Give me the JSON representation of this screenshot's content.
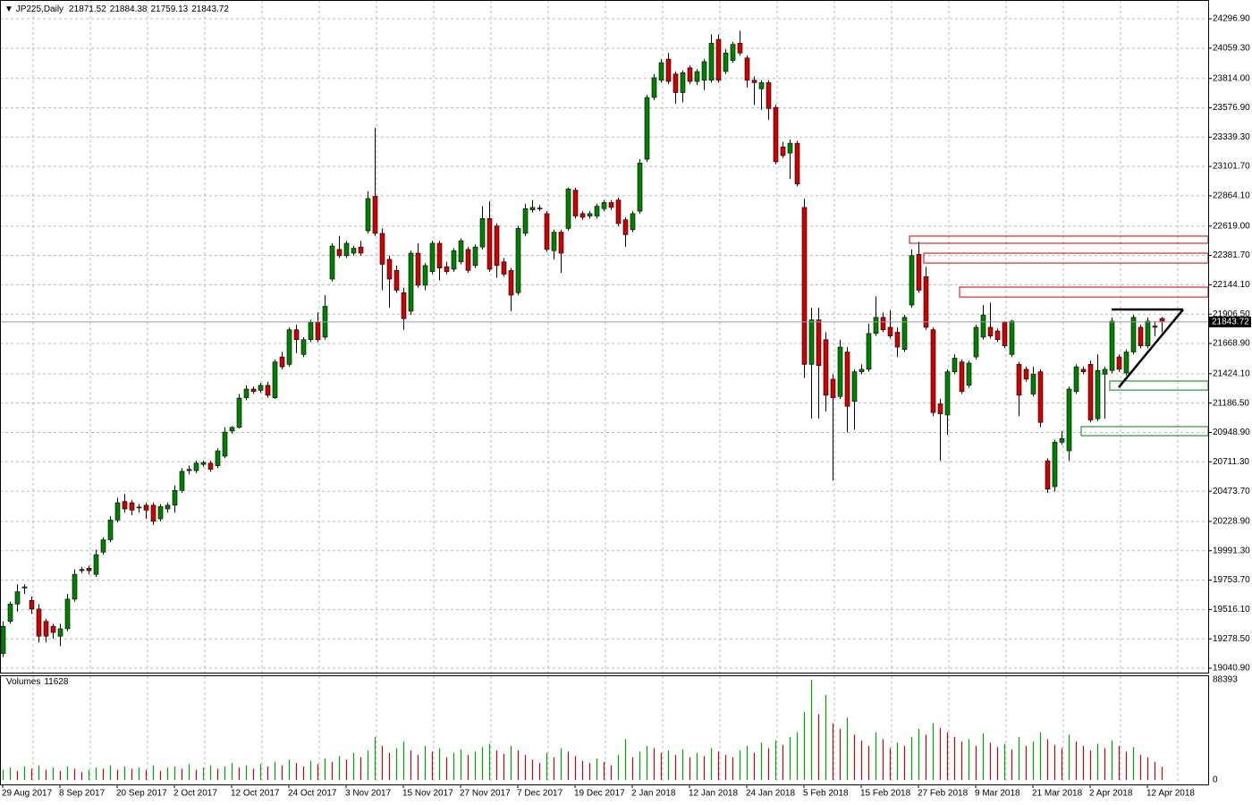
{
  "chart_data": {
    "type": "candlestick",
    "title": "JP225,Daily",
    "ylim": [
      19005,
      24449
    ],
    "yticks": [
      {
        "value": 24296.9,
        "label": "24296.90"
      },
      {
        "value": 24059.3,
        "label": "24059.30"
      },
      {
        "value": 23814,
        "label": "23814.00"
      },
      {
        "value": 23576.9,
        "label": "23576.90"
      },
      {
        "value": 23339.3,
        "label": "23339.30"
      },
      {
        "value": 23101.7,
        "label": "23101.70"
      },
      {
        "value": 22864.1,
        "label": "22864.10"
      },
      {
        "value": 22619,
        "label": "22619.00"
      },
      {
        "value": 22381.7,
        "label": "22381.70"
      },
      {
        "value": 22144.1,
        "label": "22144.10"
      },
      {
        "value": 21906.5,
        "label": "21906.50"
      },
      {
        "value": 21668.9,
        "label": "21668.90"
      },
      {
        "value": 21424.1,
        "label": "21424.10"
      },
      {
        "value": 21186.5,
        "label": "21186.50"
      },
      {
        "value": 20948.9,
        "label": "20948.90"
      },
      {
        "value": 20711.3,
        "label": "20711.30"
      },
      {
        "value": 20473.7,
        "label": "20473.70"
      },
      {
        "value": 20228.9,
        "label": "20228.90"
      },
      {
        "value": 19991.3,
        "label": "19991.30"
      },
      {
        "value": 19753.7,
        "label": "19753.70"
      },
      {
        "value": 19516.1,
        "label": "19516.10"
      },
      {
        "value": 19278.5,
        "label": "19278.50"
      },
      {
        "value": 19040.9,
        "label": "19040.90"
      }
    ],
    "xticks": [
      {
        "value": 0,
        "label": "29 Aug 2017"
      },
      {
        "value": 8,
        "label": "8 Sep 2017"
      },
      {
        "value": 16,
        "label": "20 Sep 2017"
      },
      {
        "value": 24,
        "label": "2 Oct 2017"
      },
      {
        "value": 32,
        "label": "12 Oct 2017"
      },
      {
        "value": 40,
        "label": "24 Oct 2017"
      },
      {
        "value": 48,
        "label": "3 Nov 2017"
      },
      {
        "value": 56,
        "label": "15 Nov 2017"
      },
      {
        "value": 64,
        "label": "27 Nov 2017"
      },
      {
        "value": 72,
        "label": "7 Dec 2017"
      },
      {
        "value": 80,
        "label": "19 Dec 2017"
      },
      {
        "value": 88,
        "label": "2 Jan 2018"
      },
      {
        "value": 96,
        "label": "12 Jan 2018"
      },
      {
        "value": 104,
        "label": "24 Jan 2018"
      },
      {
        "value": 112,
        "label": "5 Feb 2018"
      },
      {
        "value": 120,
        "label": "15 Feb 2018"
      },
      {
        "value": 128,
        "label": "27 Feb 2018"
      },
      {
        "value": 136,
        "label": "9 Mar 2018"
      },
      {
        "value": 144,
        "label": "21 Mar 2018"
      },
      {
        "value": 152,
        "label": "2 Apr 2018"
      },
      {
        "value": 160,
        "label": "12 Apr 2018"
      }
    ],
    "grid": true,
    "series": [
      {
        "name": "JP225",
        "up_color": "#008000",
        "down_color": "#cc0000",
        "open": [
          19160,
          19420,
          19560,
          19690,
          19590,
          19520,
          19420,
          19380,
          19300,
          19360,
          19600,
          19830,
          19850,
          19800,
          19980,
          20080,
          20240,
          20390,
          20380,
          20340,
          20360,
          20360,
          20250,
          20330,
          20360,
          20480,
          20640,
          20640,
          20690,
          20700,
          20680,
          20757,
          20960,
          20990,
          21230,
          21300,
          21290,
          21330,
          21230,
          21560,
          21500,
          21780,
          21580,
          21700,
          21840,
          21720,
          22190,
          22430,
          22380,
          22400,
          22450,
          22581,
          22860,
          22560,
          22350,
          22260,
          22080,
          21930,
          22400,
          22140,
          22250,
          22480,
          22290,
          22270,
          22330,
          22430,
          22300,
          22450,
          22680,
          22620,
          22330,
          22260,
          22080,
          22560,
          22750,
          22760,
          22720,
          22420,
          22570,
          22600,
          22910,
          22720,
          22700,
          22700,
          22760,
          22810,
          22830,
          22670,
          22590,
          22740,
          23160,
          23660,
          23800,
          23970,
          23850,
          23700,
          23900,
          23790,
          23800,
          23800,
          24130,
          23870,
          23960,
          24100,
          23980,
          23800,
          23730,
          23780,
          23580,
          23260,
          23210,
          23290,
          22770,
          21500,
          21860,
          21700,
          21380,
          21240,
          21600,
          21200,
          21440,
          21460,
          21750,
          21880,
          21800,
          21760,
          21620,
          21980,
          22390,
          22210,
          21780,
          21180,
          21090,
          21440,
          21520,
          21330,
          21560,
          21720,
          21800,
          21770,
          21840,
          21580,
          21500,
          21460,
          21260,
          21440,
          20720,
          20510,
          20870,
          20800,
          21280,
          21460,
          21500,
          21060,
          21420,
          21450,
          21560,
          21430,
          21600,
          21800,
          21650,
          21810,
          21871.52
        ],
        "high": [
          19420,
          19580,
          19720,
          19720,
          19620,
          19560,
          19440,
          19400,
          19400,
          19640,
          19840,
          19860,
          19870,
          20000,
          20100,
          20270,
          20420,
          20450,
          20400,
          20370,
          20380,
          20380,
          20370,
          20380,
          20520,
          20660,
          20680,
          20720,
          20720,
          20720,
          20820,
          20990,
          21000,
          21260,
          21330,
          21320,
          21350,
          21360,
          21540,
          21600,
          21800,
          21820,
          21720,
          21860,
          21920,
          22060,
          22480,
          22540,
          22500,
          22460,
          22500,
          22900,
          23414,
          22600,
          22380,
          22300,
          22120,
          22420,
          22480,
          22320,
          22500,
          22500,
          22330,
          22440,
          22520,
          22450,
          22470,
          22780,
          22820,
          22640,
          22360,
          22280,
          22620,
          22800,
          22830,
          22790,
          22740,
          22590,
          22590,
          22930,
          22930,
          22740,
          22740,
          22800,
          22830,
          22830,
          22850,
          22690,
          22740,
          23160,
          23680,
          23850,
          23970,
          24020,
          23870,
          23880,
          23920,
          23890,
          23970,
          24170,
          24170,
          24050,
          24110,
          24200,
          24000,
          23830,
          23800,
          23800,
          23600,
          23300,
          23320,
          23310,
          22840,
          21960,
          21960,
          21760,
          21420,
          21700,
          21640,
          21460,
          21500,
          21830,
          22050,
          21920,
          21940,
          21800,
          21900,
          22430,
          22490,
          22290,
          21800,
          21220,
          21460,
          21580,
          21540,
          21530,
          21820,
          21980,
          22000,
          21790,
          21850,
          21860,
          21520,
          21480,
          21480,
          21460,
          20740,
          20890,
          20960,
          21320,
          21500,
          21480,
          21530,
          21580,
          21480,
          21880,
          21580,
          21620,
          21900,
          21820,
          21880,
          21850,
          21884.38
        ],
        "low": [
          19130,
          19400,
          19500,
          19640,
          19480,
          19250,
          19250,
          19280,
          19220,
          19340,
          19580,
          19810,
          19800,
          19780,
          19960,
          20060,
          20220,
          20300,
          20280,
          20300,
          20250,
          20200,
          20230,
          20300,
          20300,
          20460,
          20610,
          20620,
          20670,
          20630,
          20660,
          20740,
          20940,
          20980,
          21210,
          21260,
          21270,
          21230,
          21220,
          21460,
          21480,
          21590,
          21560,
          21680,
          21680,
          21700,
          22170,
          22360,
          22360,
          22380,
          22380,
          22560,
          22540,
          22100,
          21960,
          22080,
          21780,
          21900,
          22120,
          22100,
          22230,
          22180,
          22230,
          22250,
          22310,
          22240,
          22280,
          22430,
          22250,
          22200,
          22210,
          21930,
          22060,
          22540,
          22730,
          22740,
          22410,
          22350,
          22240,
          22580,
          22680,
          22670,
          22680,
          22680,
          22740,
          22750,
          22620,
          22450,
          22570,
          22720,
          23140,
          23640,
          23780,
          23770,
          23610,
          23620,
          23770,
          23760,
          23720,
          23780,
          23780,
          23850,
          23940,
          24000,
          23740,
          23600,
          23560,
          23480,
          23120,
          23170,
          23000,
          22940,
          21390,
          21060,
          21060,
          21120,
          20560,
          21220,
          20950,
          20970,
          21420,
          21440,
          21730,
          21760,
          21710,
          21560,
          21600,
          21960,
          22080,
          21780,
          21080,
          20720,
          20930,
          21420,
          21260,
          21310,
          21540,
          21700,
          21710,
          21680,
          21630,
          21560,
          21080,
          21360,
          21240,
          20990,
          20460,
          20470,
          20850,
          20720,
          21260,
          21420,
          21030,
          21040,
          21060,
          21430,
          21440,
          21410,
          21580,
          21630,
          21630,
          21730,
          21759.13
        ],
        "close": [
          19380,
          19560,
          19660,
          19700,
          19520,
          19300,
          19300,
          19330,
          19360,
          19600,
          19800,
          19840,
          19830,
          19960,
          20080,
          20240,
          20380,
          20330,
          20320,
          20345,
          20320,
          20230,
          20350,
          20360,
          20480,
          20634,
          20650,
          20700,
          20705,
          20650,
          20800,
          20952,
          20990,
          21227,
          21300,
          21280,
          21330,
          21250,
          21520,
          21480,
          21780,
          21700,
          21700,
          21840,
          21700,
          21970,
          22458,
          22380,
          22480,
          22440,
          22400,
          22842,
          22560,
          22310,
          22190,
          22100,
          21870,
          22400,
          22140,
          22300,
          22480,
          22280,
          22250,
          22420,
          22500,
          22260,
          22450,
          22680,
          22270,
          22300,
          22230,
          22060,
          22600,
          22760,
          22770,
          22765,
          22430,
          22570,
          22400,
          22920,
          22700,
          22690,
          22720,
          22780,
          22810,
          22770,
          22640,
          22550,
          22720,
          23130,
          23660,
          23820,
          23942,
          23790,
          23700,
          23860,
          23790,
          23870,
          23950,
          24100,
          23800,
          24020,
          24090,
          24020,
          23800,
          23780,
          23780,
          23570,
          23140,
          23190,
          23290,
          22960,
          21500,
          21860,
          21490,
          21250,
          21230,
          21640,
          21160,
          21440,
          21460,
          21750,
          21880,
          21780,
          21730,
          21640,
          21880,
          22380,
          22100,
          21800,
          21110,
          21100,
          21440,
          21550,
          21280,
          21510,
          21800,
          21900,
          21730,
          21700,
          21650,
          21850,
          21250,
          21380,
          21420,
          21030,
          20490,
          20870,
          20900,
          21300,
          21480,
          21440,
          21050,
          21450,
          21460,
          21850,
          21460,
          21600,
          21880,
          21650,
          21850,
          21800,
          21843.72
        ]
      }
    ],
    "volume": {
      "name": "Volumes",
      "up_color": "#00a000",
      "down_color": "#cc0000",
      "ylim": [
        -3900,
        91500
      ],
      "yticks": [
        88393,
        0
      ],
      "values": [
        9000,
        11000,
        8000,
        12000,
        10000,
        13000,
        9000,
        11000,
        8000,
        12000,
        10000,
        7000,
        9000,
        11000,
        10000,
        13000,
        9000,
        12000,
        10000,
        11000,
        9000,
        13000,
        8000,
        11000,
        12000,
        10000,
        14000,
        9000,
        11000,
        13000,
        10000,
        12000,
        15000,
        11000,
        13000,
        10000,
        14000,
        12000,
        16000,
        13000,
        18000,
        15000,
        12000,
        17000,
        14000,
        19000,
        16000,
        21000,
        18000,
        24000,
        20000,
        26000,
        38000,
        30000,
        24000,
        28000,
        34000,
        26000,
        22000,
        30000,
        25000,
        28000,
        20000,
        24000,
        27000,
        22000,
        25000,
        29000,
        32000,
        26000,
        23000,
        30000,
        26000,
        22000,
        18000,
        15000,
        24000,
        20000,
        28000,
        25000,
        21000,
        17000,
        15000,
        19000,
        16000,
        13000,
        22000,
        36000,
        20000,
        25000,
        30000,
        28000,
        24000,
        26000,
        22000,
        27000,
        20000,
        24000,
        21000,
        28000,
        25000,
        22000,
        20000,
        26000,
        30000,
        24000,
        33000,
        28000,
        35000,
        31000,
        38000,
        42000,
        60000,
        88393,
        58000,
        75000,
        50000,
        45000,
        55000,
        40000,
        35000,
        30000,
        42000,
        36000,
        28000,
        33000,
        30000,
        38000,
        45000,
        40000,
        50000,
        46000,
        42000,
        38000,
        34000,
        36000,
        30000,
        41000,
        33000,
        29000,
        32000,
        27000,
        38000,
        30000,
        34000,
        42000,
        36000,
        31000,
        28000,
        40000,
        34000,
        30000,
        26000,
        32000,
        28000,
        35000,
        30000,
        25000,
        29000,
        22000,
        20000,
        16000,
        11628
      ]
    },
    "zones": [
      {
        "color": "#cc0000",
        "x_start": 127,
        "range": [
          22480,
          22538
        ]
      },
      {
        "color": "#cc0000",
        "x_start": 129,
        "range": [
          22320,
          22400
        ]
      },
      {
        "color": "#cc0000",
        "x_start": 134,
        "range": [
          22045,
          22125
        ]
      },
      {
        "color": "#008000",
        "x_start": 155,
        "range": [
          21292,
          21365
        ]
      },
      {
        "color": "#008000",
        "x_start": 151,
        "range": [
          20923,
          20996
        ]
      }
    ],
    "lines": [
      {
        "color": "#000000",
        "x": [
          155,
          165
        ],
        "y": [
          21944,
          21944
        ]
      },
      {
        "color": "#000000",
        "x": [
          165,
          156
        ],
        "y": [
          21944,
          21314
        ]
      }
    ]
  }
}
